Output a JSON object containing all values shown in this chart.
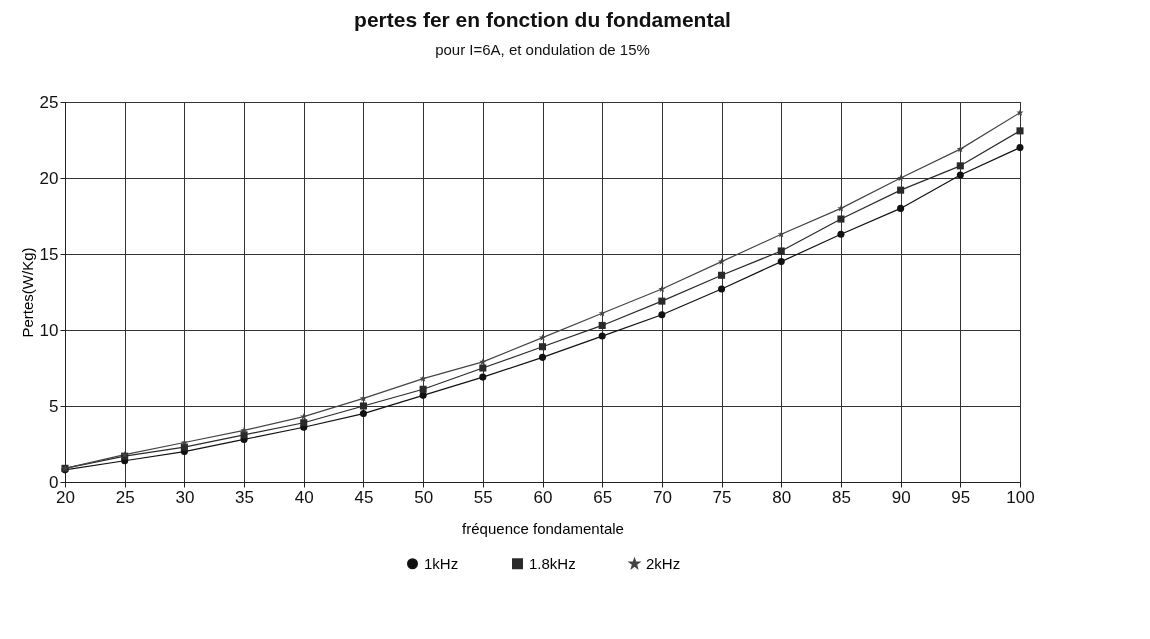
{
  "chart_data": {
    "type": "line",
    "title": "pertes fer en fonction du fondamental",
    "subtitle": "pour I=6A, et ondulation de 15%",
    "xlabel": "fréquence fondamentale",
    "ylabel": "Pertes(W/Kg)",
    "x": [
      20,
      25,
      30,
      35,
      40,
      45,
      50,
      55,
      60,
      65,
      70,
      75,
      80,
      85,
      90,
      95,
      100
    ],
    "series": [
      {
        "name": "1kHz",
        "color": "#111111",
        "marker": "circle",
        "values": [
          0.8,
          1.4,
          2.0,
          2.8,
          3.6,
          4.5,
          5.7,
          6.9,
          8.2,
          9.6,
          11.0,
          12.7,
          14.5,
          16.3,
          18.0,
          20.2,
          22.0
        ]
      },
      {
        "name": "1.8kHz",
        "color": "#2a2a2a",
        "marker": "square",
        "values": [
          0.9,
          1.7,
          2.3,
          3.1,
          3.9,
          5.0,
          6.1,
          7.5,
          8.9,
          10.3,
          11.9,
          13.6,
          15.2,
          17.3,
          19.2,
          20.8,
          23.1
        ]
      },
      {
        "name": "2kHz",
        "color": "#444444",
        "marker": "star",
        "values": [
          0.9,
          1.8,
          2.6,
          3.4,
          4.3,
          5.5,
          6.8,
          7.9,
          9.5,
          11.1,
          12.7,
          14.5,
          16.3,
          18.0,
          20.0,
          21.9,
          24.3
        ]
      }
    ],
    "xlim": [
      20,
      100
    ],
    "xticks": [
      20,
      25,
      30,
      35,
      40,
      45,
      50,
      55,
      60,
      65,
      70,
      75,
      80,
      85,
      90,
      95,
      100
    ],
    "ylim": [
      0,
      25
    ],
    "yticks": [
      0,
      5,
      10,
      15,
      20,
      25
    ],
    "grid": true,
    "legend": "bottom",
    "line_style": "solid"
  }
}
